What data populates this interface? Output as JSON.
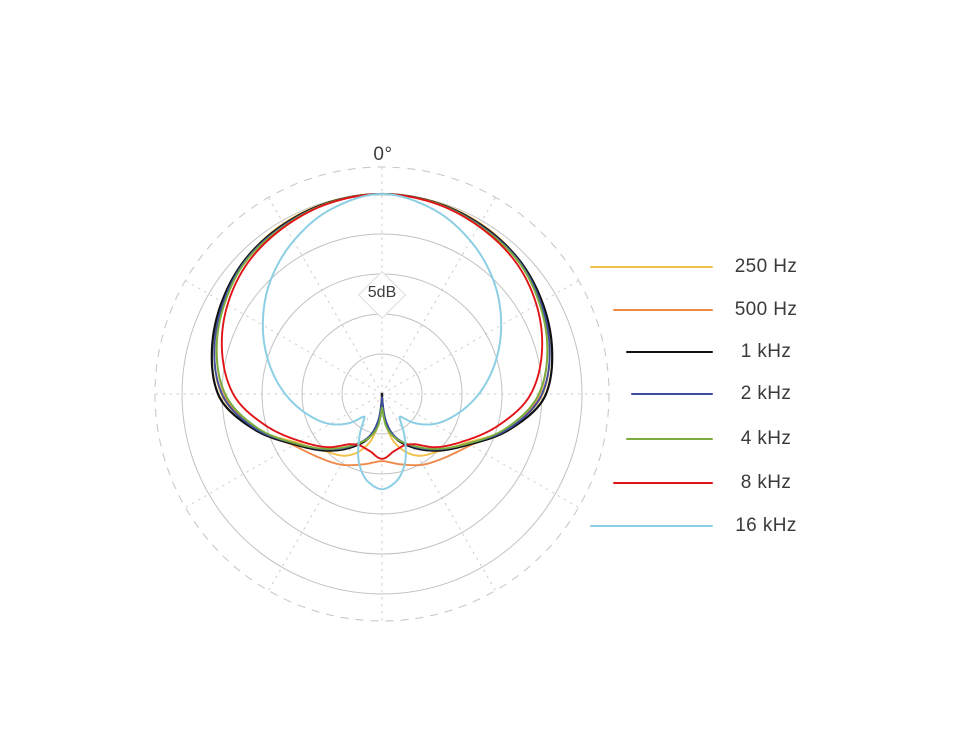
{
  "figure": {
    "background": "#ffffff",
    "text_color": "#3a3a3a"
  },
  "chart_data": {
    "type": "line",
    "subtype": "polar-pattern",
    "title": "",
    "angle_label_top": "0°",
    "radial_axis": {
      "label": "5dB",
      "db_per_ring": 5,
      "ring_count": 5,
      "outer_ring_db": 0,
      "center_db": -25,
      "outer_dashed_ring": true
    },
    "grid": {
      "spoke_step_deg": 30,
      "ring_color": "#c2c2c2",
      "spoke_color": "#cdcdcd",
      "outer_dashed_color": "#c9c9c9",
      "grid_on": true
    },
    "legend_position": "right",
    "symmetry": "mirrored about the 0°–180° axis",
    "series": [
      {
        "name": "250 Hz",
        "color": "#f3c14b",
        "stroke_width": 1.9,
        "points_deg_db": [
          [
            0,
            0
          ],
          [
            15,
            -0.1
          ],
          [
            30,
            -0.4
          ],
          [
            45,
            -1.0
          ],
          [
            60,
            -2.0
          ],
          [
            75,
            -3.3
          ],
          [
            90,
            -4.9
          ],
          [
            105,
            -8.6
          ],
          [
            120,
            -12.8
          ],
          [
            135,
            -14.9
          ],
          [
            150,
            -16.1
          ],
          [
            165,
            -18.6
          ],
          [
            173,
            -21.2
          ],
          [
            180,
            -24.3
          ]
        ]
      },
      {
        "name": "500 Hz",
        "color": "#ef8a4b",
        "stroke_width": 1.9,
        "points_deg_db": [
          [
            0,
            0
          ],
          [
            15,
            -0.15
          ],
          [
            30,
            -0.5
          ],
          [
            45,
            -1.1
          ],
          [
            60,
            -2.2
          ],
          [
            75,
            -3.6
          ],
          [
            90,
            -5.3
          ],
          [
            105,
            -8.4
          ],
          [
            120,
            -12.2
          ],
          [
            135,
            -13.8
          ],
          [
            150,
            -14.8
          ],
          [
            165,
            -15.9
          ],
          [
            180,
            -16.6
          ]
        ]
      },
      {
        "name": "1 kHz",
        "color": "#101010",
        "stroke_width": 2.2,
        "points_deg_db": [
          [
            0,
            0
          ],
          [
            15,
            -0.15
          ],
          [
            30,
            -0.5
          ],
          [
            45,
            -1.0
          ],
          [
            60,
            -1.9
          ],
          [
            75,
            -3.0
          ],
          [
            90,
            -4.5
          ],
          [
            105,
            -8.3
          ],
          [
            120,
            -12.4
          ],
          [
            135,
            -15.0
          ],
          [
            150,
            -17.3
          ],
          [
            165,
            -19.6
          ],
          [
            173,
            -21.8
          ],
          [
            180,
            -25.0
          ]
        ]
      },
      {
        "name": "2 kHz",
        "color": "#3c4da0",
        "stroke_width": 1.9,
        "points_deg_db": [
          [
            0,
            0
          ],
          [
            15,
            -0.2
          ],
          [
            30,
            -0.6
          ],
          [
            45,
            -1.1
          ],
          [
            60,
            -2.1
          ],
          [
            75,
            -3.3
          ],
          [
            90,
            -5.0
          ],
          [
            105,
            -8.5
          ],
          [
            120,
            -12.6
          ],
          [
            135,
            -15.2
          ],
          [
            150,
            -17.5
          ],
          [
            165,
            -19.8
          ],
          [
            173,
            -22.0
          ],
          [
            180,
            -24.6
          ]
        ]
      },
      {
        "name": "4 kHz",
        "color": "#7aad3e",
        "stroke_width": 1.9,
        "points_deg_db": [
          [
            0,
            0
          ],
          [
            15,
            -0.2
          ],
          [
            30,
            -0.7
          ],
          [
            45,
            -1.2
          ],
          [
            60,
            -2.3
          ],
          [
            75,
            -3.6
          ],
          [
            90,
            -5.4
          ],
          [
            105,
            -8.8
          ],
          [
            120,
            -12.6
          ],
          [
            135,
            -15.3
          ],
          [
            150,
            -17.6
          ],
          [
            165,
            -19.5
          ],
          [
            173,
            -21.0
          ],
          [
            180,
            -23.3
          ]
        ]
      },
      {
        "name": "8 kHz",
        "color": "#e01318",
        "stroke_width": 1.9,
        "points_deg_db": [
          [
            0,
            0
          ],
          [
            15,
            -0.25
          ],
          [
            30,
            -0.8
          ],
          [
            45,
            -1.5
          ],
          [
            60,
            -2.7
          ],
          [
            75,
            -4.3
          ],
          [
            90,
            -6.4
          ],
          [
            105,
            -9.9
          ],
          [
            120,
            -13.2
          ],
          [
            135,
            -15.6
          ],
          [
            148,
            -17.6
          ],
          [
            157,
            -18.0
          ],
          [
            168,
            -17.7
          ],
          [
            180,
            -16.9
          ]
        ]
      },
      {
        "name": "16 kHz",
        "color": "#8ccfe4",
        "stroke_width": 2.0,
        "points_deg_db": [
          [
            0,
            0
          ],
          [
            15,
            -1.0
          ],
          [
            30,
            -2.9
          ],
          [
            45,
            -5.2
          ],
          [
            60,
            -7.8
          ],
          [
            75,
            -10.4
          ],
          [
            90,
            -12.9
          ],
          [
            105,
            -15.3
          ],
          [
            120,
            -17.5
          ],
          [
            132,
            -19.6
          ],
          [
            142,
            -21.4
          ],
          [
            152,
            -19.0
          ],
          [
            162,
            -15.8
          ],
          [
            171,
            -13.9
          ],
          [
            180,
            -13.1
          ]
        ]
      }
    ]
  }
}
